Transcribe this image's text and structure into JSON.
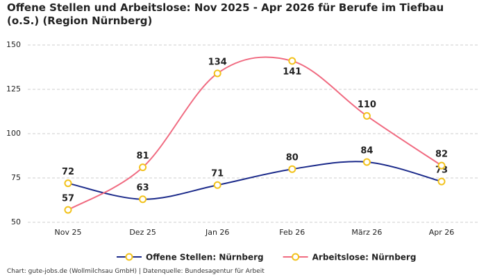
{
  "chart_data": {
    "type": "line",
    "title": "Offene Stellen und Arbeitslose: Nov 2025 - Apr 2026 für Berufe im Tiefbau (o.S.) (Region Nürnberg)",
    "categories": [
      "Nov 25",
      "Dez 25",
      "Jan 26",
      "Feb 26",
      "März 26",
      "Apr 26"
    ],
    "series": [
      {
        "name": "Offene Stellen: Nürnberg",
        "color": "#1b2a8a",
        "values": [
          72,
          63,
          71,
          80,
          84,
          73
        ]
      },
      {
        "name": "Arbeitslose: Nürnberg",
        "color": "#f06a80",
        "values": [
          57,
          81,
          134,
          141,
          110,
          82
        ]
      }
    ],
    "marker_color": "#f2c21b",
    "ylim": [
      50,
      150
    ],
    "yticks": [
      50,
      75,
      100,
      125,
      150
    ],
    "grid": true,
    "legend": "bottom",
    "footer": "Chart: gute-jobs.de (Wollmilchsau GmbH) | Datenquelle: Bundesagentur für Arbeit"
  }
}
